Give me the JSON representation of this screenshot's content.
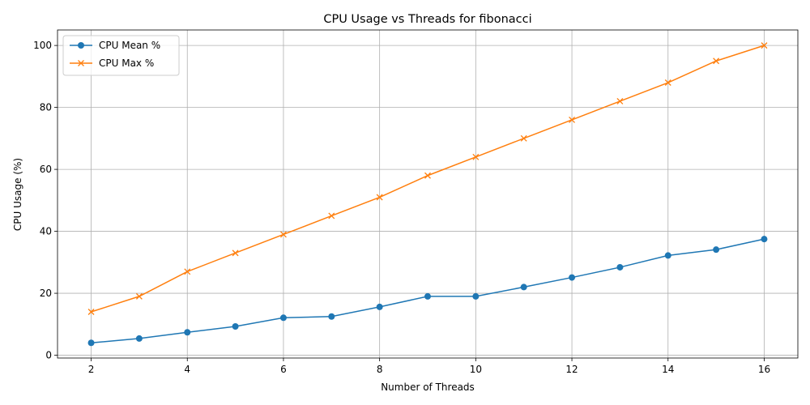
{
  "chart_data": {
    "type": "line",
    "title": "CPU Usage vs Threads for fibonacci",
    "xlabel": "Number of Threads",
    "ylabel": "CPU Usage (%)",
    "x": [
      2,
      3,
      4,
      5,
      6,
      7,
      8,
      9,
      10,
      11,
      12,
      13,
      14,
      15,
      16
    ],
    "xlim": [
      1.3,
      16.7
    ],
    "ylim": [
      -0.9,
      105
    ],
    "xticks": [
      2,
      4,
      6,
      8,
      10,
      12,
      14,
      16
    ],
    "yticks": [
      0,
      20,
      40,
      60,
      80,
      100
    ],
    "grid": true,
    "legend_position": "upper left",
    "series": [
      {
        "name": "CPU Mean %",
        "color": "#1f77b4",
        "marker": "circle",
        "values": [
          4.0,
          5.4,
          7.4,
          9.3,
          12.1,
          12.5,
          15.6,
          19.0,
          19.0,
          22.0,
          25.1,
          28.4,
          32.2,
          34.1,
          37.5
        ]
      },
      {
        "name": "CPU Max %",
        "color": "#ff7f0e",
        "marker": "x",
        "values": [
          14.0,
          19.0,
          27.0,
          33.0,
          39.0,
          45.0,
          51.0,
          58.0,
          64.0,
          70.0,
          76.0,
          82.0,
          88.0,
          95.0,
          100.0
        ]
      }
    ]
  }
}
